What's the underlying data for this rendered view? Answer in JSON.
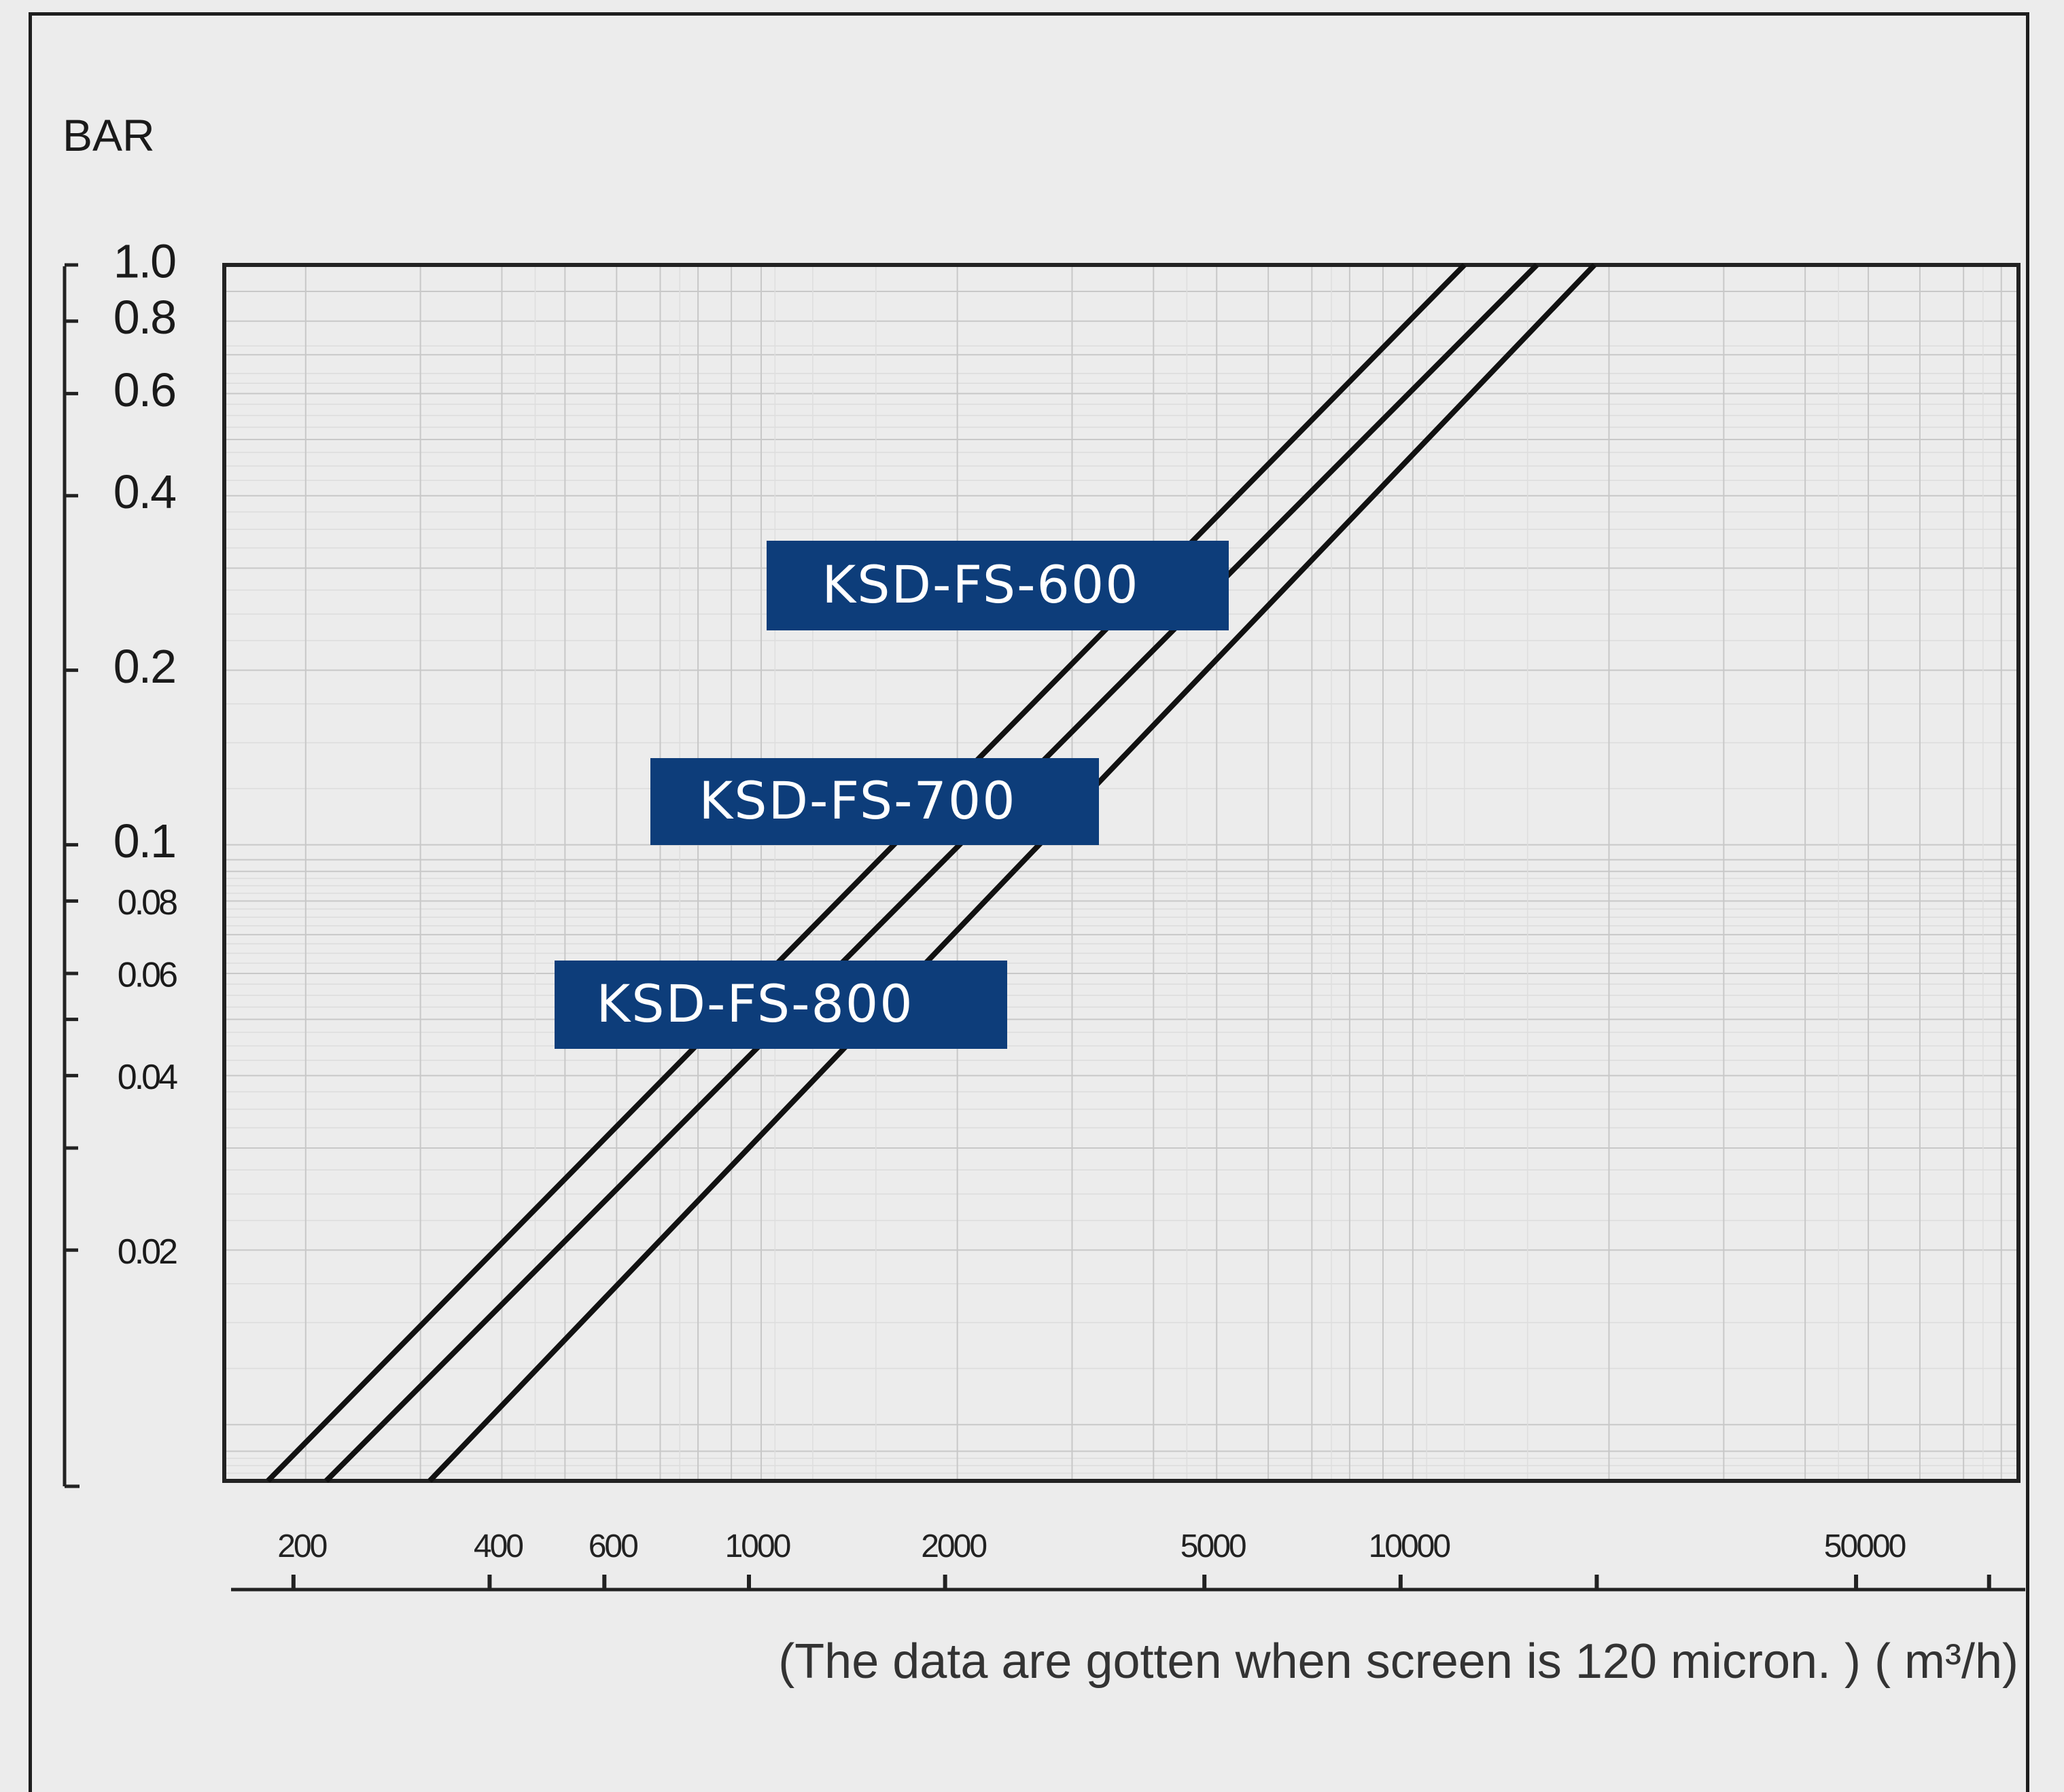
{
  "chart_data": {
    "type": "line",
    "ylabel": "BAR",
    "xlabel": "(The data are gotten when screen is 120 micron. ) ( m³/h)",
    "x_scale": "log",
    "y_scale": "log",
    "xlim": [
      150,
      85000
    ],
    "ylim": [
      0.008,
      1.0
    ],
    "grid": true,
    "y_ticks": [
      {
        "value": 1.0,
        "label": "1.0"
      },
      {
        "value": 0.8,
        "label": "0.8"
      },
      {
        "value": 0.6,
        "label": "0.6"
      },
      {
        "value": 0.4,
        "label": "0.4"
      },
      {
        "value": 0.2,
        "label": "0.2"
      },
      {
        "value": 0.1,
        "label": "0.1"
      },
      {
        "value": 0.08,
        "label": "0.08"
      },
      {
        "value": 0.06,
        "label": "0.06"
      },
      {
        "value": 0.04,
        "label": "0.04"
      },
      {
        "value": 0.02,
        "label": "0.02"
      }
    ],
    "x_ticks": [
      {
        "value": 200,
        "label": "200"
      },
      {
        "value": 400,
        "label": "400"
      },
      {
        "value": 600,
        "label": "600"
      },
      {
        "value": 1000,
        "label": "1000"
      },
      {
        "value": 2000,
        "label": "2000"
      },
      {
        "value": 5000,
        "label": "5000"
      },
      {
        "value": 10000,
        "label": "10000"
      },
      {
        "value": 50000,
        "label": "50000"
      }
    ],
    "series": [
      {
        "name": "KSD-FS-600",
        "x": [
          175,
          12000
        ],
        "y": [
          0.008,
          1.0
        ]
      },
      {
        "name": "KSD-FS-700",
        "x": [
          215,
          15500
        ],
        "y": [
          0.008,
          1.0
        ]
      },
      {
        "name": "KSD-FS-800",
        "x": [
          310,
          19000
        ],
        "y": [
          0.008,
          1.0
        ]
      }
    ],
    "colors": {
      "line": "#111111",
      "label_bg": "#0d3d7a",
      "label_text": "#ffffff",
      "grid": "#c8c8c8",
      "axis": "#222222"
    }
  }
}
